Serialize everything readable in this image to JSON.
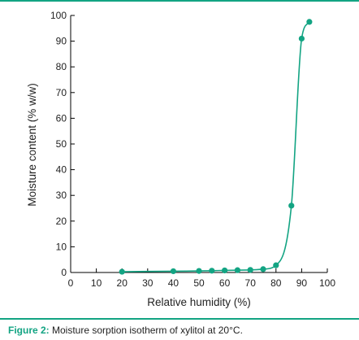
{
  "colors": {
    "series": "#13A483",
    "rule": "#13A483",
    "caption_label": "#13A483",
    "axis": "#000000",
    "text": "#222222"
  },
  "caption": {
    "label": "Figure 2:",
    "text": "Moisture sorption isotherm of xylitol at 20°C."
  },
  "chart_data": {
    "type": "scatter",
    "title": "",
    "xlabel": "Relative humidity (%)",
    "ylabel": "Moisture content (% w/w)",
    "xlim": [
      0,
      100
    ],
    "ylim": [
      0,
      100
    ],
    "xticks": [
      0,
      10,
      20,
      30,
      40,
      50,
      60,
      70,
      80,
      90,
      100
    ],
    "yticks": [
      0,
      10,
      20,
      30,
      40,
      50,
      60,
      70,
      80,
      90,
      100
    ],
    "grid": false,
    "legend": "none",
    "connected_by_smooth_curve": true,
    "series": [
      {
        "points": [
          {
            "x": 20,
            "y": 0.3
          },
          {
            "x": 40,
            "y": 0.5
          },
          {
            "x": 50,
            "y": 0.6
          },
          {
            "x": 55,
            "y": 0.7
          },
          {
            "x": 60,
            "y": 0.8
          },
          {
            "x": 65,
            "y": 0.9
          },
          {
            "x": 70,
            "y": 1.0
          },
          {
            "x": 75,
            "y": 1.3
          },
          {
            "x": 80,
            "y": 2.8
          },
          {
            "x": 86,
            "y": 26
          },
          {
            "x": 90,
            "y": 91
          },
          {
            "x": 93,
            "y": 97.5
          }
        ]
      }
    ]
  }
}
